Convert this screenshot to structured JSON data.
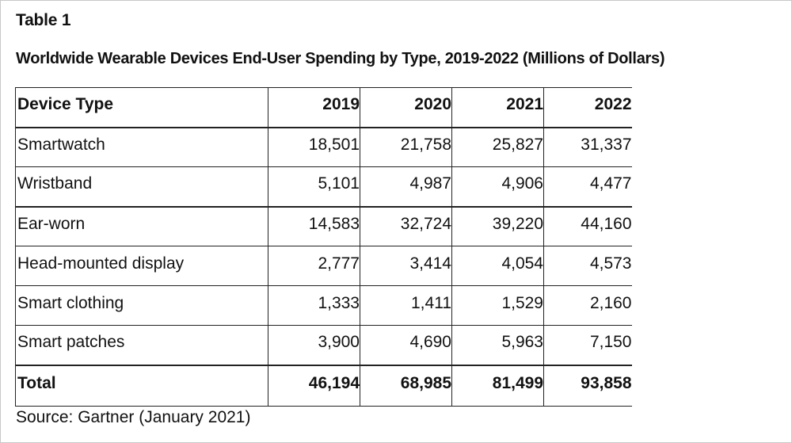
{
  "table_label": "Table 1",
  "title": "Worldwide Wearable Devices End-User Spending by Type, 2019-2022 (Millions of Dollars)",
  "columns": [
    "Device Type",
    "2019",
    "2020",
    "2021",
    "2022"
  ],
  "rows": [
    {
      "type": "Smartwatch",
      "v2019": "18,501",
      "v2020": "21,758",
      "v2021": "25,827",
      "v2022": "31,337"
    },
    {
      "type": "Wristband",
      "v2019": "5,101",
      "v2020": "4,987",
      "v2021": "4,906",
      "v2022": "4,477"
    },
    {
      "type": "Ear-worn",
      "v2019": "14,583",
      "v2020": "32,724",
      "v2021": "39,220",
      "v2022": "44,160"
    },
    {
      "type": "Head-mounted display",
      "v2019": "2,777",
      "v2020": "3,414",
      "v2021": "4,054",
      "v2022": "4,573"
    },
    {
      "type": "Smart clothing",
      "v2019": "1,333",
      "v2020": "1,411",
      "v2021": "1,529",
      "v2022": "2,160"
    },
    {
      "type": "Smart patches",
      "v2019": "3,900",
      "v2020": "4,690",
      "v2021": "5,963",
      "v2022": "7,150"
    }
  ],
  "total": {
    "type": "Total",
    "v2019": "46,194",
    "v2020": "68,985",
    "v2021": "81,499",
    "v2022": "93,858"
  },
  "source": "Source: Gartner (January 2021)"
}
